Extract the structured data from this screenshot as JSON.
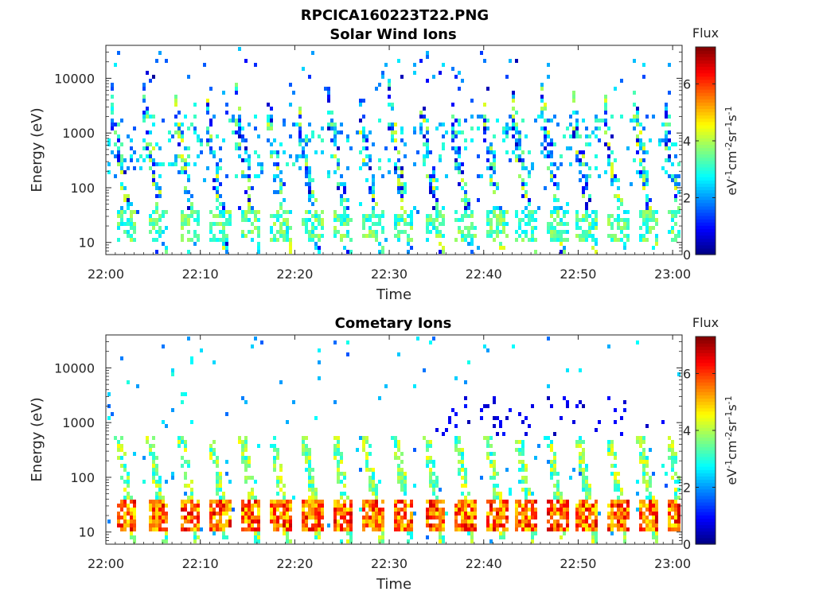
{
  "figure": {
    "title": "RPCICA160223T22.PNG"
  },
  "chart_data": [
    {
      "type": "heatmap",
      "title": "Solar Wind Ions",
      "xlabel": "Time",
      "ylabel": "Energy (eV)",
      "x_ticks": [
        "22:00",
        "22:10",
        "22:20",
        "22:30",
        "22:40",
        "22:50",
        "23:00"
      ],
      "x_range": [
        "22:00",
        "23:01"
      ],
      "y_scale": "log",
      "y_ticks": [
        10,
        100,
        1000,
        10000
      ],
      "y_tick_labels": [
        "10",
        "100",
        "1000",
        "10000"
      ],
      "y_range": [
        6,
        40000
      ],
      "colorbar": {
        "title": "Flux",
        "label": "eV-1cm-2sr-1s-1",
        "ticks": [
          0,
          2,
          4,
          6
        ],
        "tick_labels": [
          "0",
          "2",
          "4",
          "6"
        ],
        "range": [
          0,
          7.3
        ],
        "colormap": "jet"
      },
      "sweep_times_min": [
        2.1,
        5.4,
        8.7,
        11.9,
        15.2,
        18.4,
        21.7,
        25.0,
        28.2,
        31.4,
        34.7,
        37.9,
        41.2,
        44.4,
        47.6,
        50.8,
        54.1,
        57.3,
        60.4
      ],
      "peak_flux_range": [
        1,
        4.5
      ]
    },
    {
      "type": "heatmap",
      "title": "Cometary Ions",
      "xlabel": "Time",
      "ylabel": "Energy (eV)",
      "x_ticks": [
        "22:00",
        "22:10",
        "22:20",
        "22:30",
        "22:40",
        "22:50",
        "23:00"
      ],
      "x_range": [
        "22:00",
        "23:01"
      ],
      "y_scale": "log",
      "y_ticks": [
        10,
        100,
        1000,
        10000
      ],
      "y_tick_labels": [
        "10",
        "100",
        "1000",
        "10000"
      ],
      "y_range": [
        6,
        40000
      ],
      "colorbar": {
        "title": "Flux",
        "label": "eV-1cm-2sr-1s-1",
        "ticks": [
          0,
          2,
          4,
          6
        ],
        "tick_labels": [
          "0",
          "2",
          "4",
          "6"
        ],
        "range": [
          0,
          7.3
        ],
        "colormap": "jet"
      },
      "sweep_times_min": [
        2.1,
        5.4,
        8.7,
        11.9,
        15.2,
        18.4,
        21.7,
        25.0,
        28.2,
        31.4,
        34.7,
        37.9,
        41.2,
        44.4,
        47.6,
        50.8,
        54.1,
        57.3,
        60.4
      ],
      "peak_flux_range": [
        2,
        6.8
      ]
    }
  ]
}
